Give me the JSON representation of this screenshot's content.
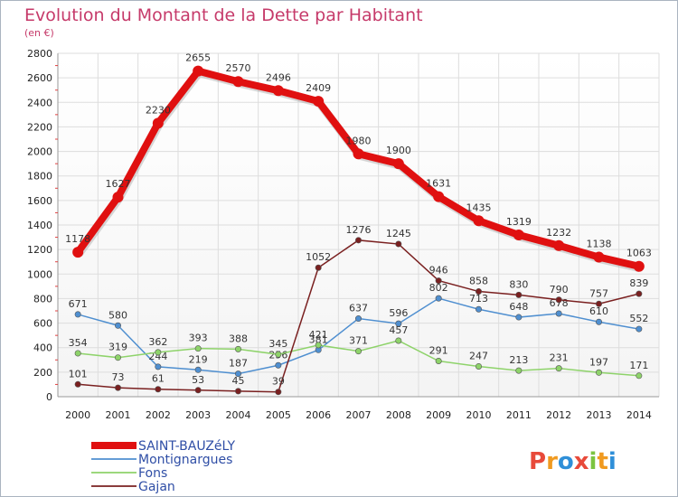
{
  "chart_data": {
    "type": "line",
    "title": "Evolution du Montant de la Dette par Habitant",
    "subtitle": "(en €)",
    "xlabel": "",
    "ylabel": "",
    "x": [
      "2000",
      "2001",
      "2002",
      "2003",
      "2004",
      "2005",
      "2006",
      "2007",
      "2008",
      "2009",
      "2010",
      "2011",
      "2012",
      "2013",
      "2014"
    ],
    "ylim": [
      0,
      2800
    ],
    "yticks": [
      0,
      200,
      400,
      600,
      800,
      1000,
      1200,
      1400,
      1600,
      1800,
      2000,
      2200,
      2400,
      2600,
      2800
    ],
    "grid": true,
    "legend": "bottom-left",
    "series": [
      {
        "name": "SAINT-BAUZéLY",
        "color": "#e01010",
        "values": [
          1178,
          1627,
          2230,
          2655,
          2570,
          2496,
          2409,
          1980,
          1900,
          1631,
          1435,
          1319,
          1232,
          1138,
          1063
        ]
      },
      {
        "name": "Montignargues",
        "color": "#4f8fd0",
        "values": [
          671,
          580,
          244,
          219,
          187,
          256,
          381,
          637,
          596,
          802,
          713,
          648,
          678,
          610,
          552
        ]
      },
      {
        "name": "Fons",
        "color": "#8ed36a",
        "values": [
          354,
          319,
          362,
          393,
          388,
          345,
          421,
          371,
          457,
          291,
          247,
          213,
          231,
          197,
          171
        ]
      },
      {
        "name": "Gajan",
        "color": "#7a2020",
        "values": [
          101,
          73,
          61,
          53,
          45,
          39,
          1052,
          1276,
          1245,
          946,
          858,
          830,
          790,
          757,
          839
        ]
      }
    ]
  },
  "logo": {
    "text": "Proxiti"
  }
}
